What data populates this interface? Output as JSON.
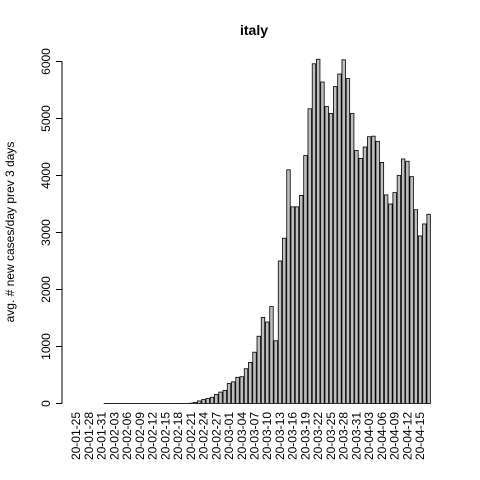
{
  "chart_data": {
    "type": "bar",
    "title": "italy",
    "xlabel": "",
    "ylabel": "avg. # new cases/day prev  3  days",
    "ylim": [
      0,
      6000
    ],
    "yticks": [
      0,
      1000,
      2000,
      3000,
      4000,
      5000,
      6000
    ],
    "xtick_labels": [
      "20-01-25",
      "20-01-28",
      "20-01-31",
      "20-02-03",
      "20-02-06",
      "20-02-09",
      "20-02-12",
      "20-02-15",
      "20-02-18",
      "20-02-21",
      "20-02-24",
      "20-02-27",
      "20-03-01",
      "20-03-04",
      "20-03-07",
      "20-03-10",
      "20-03-13",
      "20-03-16",
      "20-03-19",
      "20-03-22",
      "20-03-25",
      "20-03-28",
      "20-03-31",
      "20-04-03",
      "20-04-06",
      "20-04-09",
      "20-04-12",
      "20-04-15"
    ],
    "categories": [
      "20-01-25",
      "20-01-26",
      "20-01-27",
      "20-01-28",
      "20-01-29",
      "20-01-30",
      "20-01-31",
      "20-02-01",
      "20-02-02",
      "20-02-03",
      "20-02-04",
      "20-02-05",
      "20-02-06",
      "20-02-07",
      "20-02-08",
      "20-02-09",
      "20-02-10",
      "20-02-11",
      "20-02-12",
      "20-02-13",
      "20-02-14",
      "20-02-15",
      "20-02-16",
      "20-02-17",
      "20-02-18",
      "20-02-19",
      "20-02-20",
      "20-02-21",
      "20-02-22",
      "20-02-23",
      "20-02-24",
      "20-02-25",
      "20-02-26",
      "20-02-27",
      "20-02-28",
      "20-02-29",
      "20-03-01",
      "20-03-02",
      "20-03-03",
      "20-03-04",
      "20-03-05",
      "20-03-06",
      "20-03-07",
      "20-03-08",
      "20-03-09",
      "20-03-10",
      "20-03-11",
      "20-03-12",
      "20-03-13",
      "20-03-14",
      "20-03-15",
      "20-03-16",
      "20-03-17",
      "20-03-18",
      "20-03-19",
      "20-03-20",
      "20-03-21",
      "20-03-22",
      "20-03-23",
      "20-03-24",
      "20-03-25",
      "20-03-26",
      "20-03-27",
      "20-03-28",
      "20-03-29",
      "20-03-30",
      "20-03-31",
      "20-04-01",
      "20-04-02",
      "20-04-03",
      "20-04-04",
      "20-04-05",
      "20-04-06",
      "20-04-07",
      "20-04-08",
      "20-04-09",
      "20-04-10",
      "20-04-11",
      "20-04-12",
      "20-04-13",
      "20-04-14",
      "20-04-15",
      "20-04-16",
      "20-04-17",
      "20-04-18"
    ],
    "values": [
      0,
      0,
      0,
      0,
      0,
      0,
      0,
      1,
      1,
      1,
      1,
      1,
      1,
      1,
      1,
      1,
      1,
      1,
      1,
      1,
      1,
      1,
      1,
      1,
      1,
      1,
      1,
      5,
      20,
      45,
      70,
      90,
      110,
      160,
      200,
      230,
      350,
      380,
      460,
      470,
      610,
      720,
      900,
      1180,
      1510,
      1430,
      1700,
      1100,
      2500,
      2900,
      4100,
      3450,
      3450,
      3650,
      4350,
      5170,
      5960,
      6040,
      5640,
      5210,
      5090,
      5560,
      5780,
      6030,
      5700,
      5090,
      4440,
      4300,
      4500,
      4680,
      4690,
      4600,
      4230,
      3660,
      3500,
      3700,
      4000,
      4290,
      4250,
      3980,
      3400,
      2940,
      3150,
      3320,
      0
    ]
  }
}
